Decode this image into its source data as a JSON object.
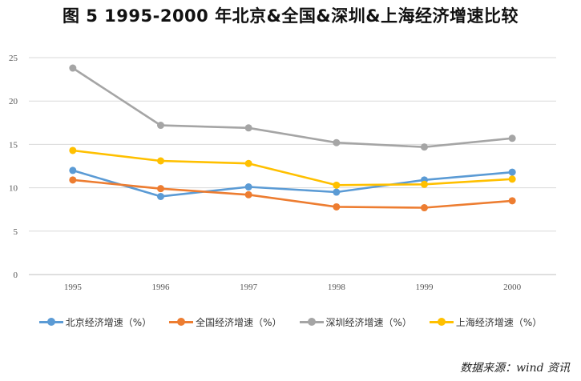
{
  "title": "图 5   1995-2000 年北京&全国&深圳&上海经济增速比较",
  "source": "数据来源：wind 资讯",
  "chart_data": {
    "type": "line",
    "x": [
      "1995",
      "1996",
      "1997",
      "1998",
      "1999",
      "2000"
    ],
    "ylim": [
      0,
      25
    ],
    "yticks": [
      0,
      5,
      10,
      15,
      20,
      25
    ],
    "grid": true,
    "legend_position": "bottom",
    "series": [
      {
        "name": "北京经济增速（%）",
        "color": "#5b9bd5",
        "values": [
          12.0,
          9.0,
          10.1,
          9.5,
          10.9,
          11.8
        ]
      },
      {
        "name": "全国经济增速（%）",
        "color": "#ed7d31",
        "values": [
          10.9,
          9.9,
          9.2,
          7.8,
          7.7,
          8.5
        ]
      },
      {
        "name": "深圳经济增速（%）",
        "color": "#a5a5a5",
        "values": [
          23.8,
          17.2,
          16.9,
          15.2,
          14.7,
          15.7
        ]
      },
      {
        "name": "上海经济增速（%）",
        "color": "#ffc000",
        "values": [
          14.3,
          13.1,
          12.8,
          10.3,
          10.4,
          11.0
        ]
      }
    ]
  }
}
